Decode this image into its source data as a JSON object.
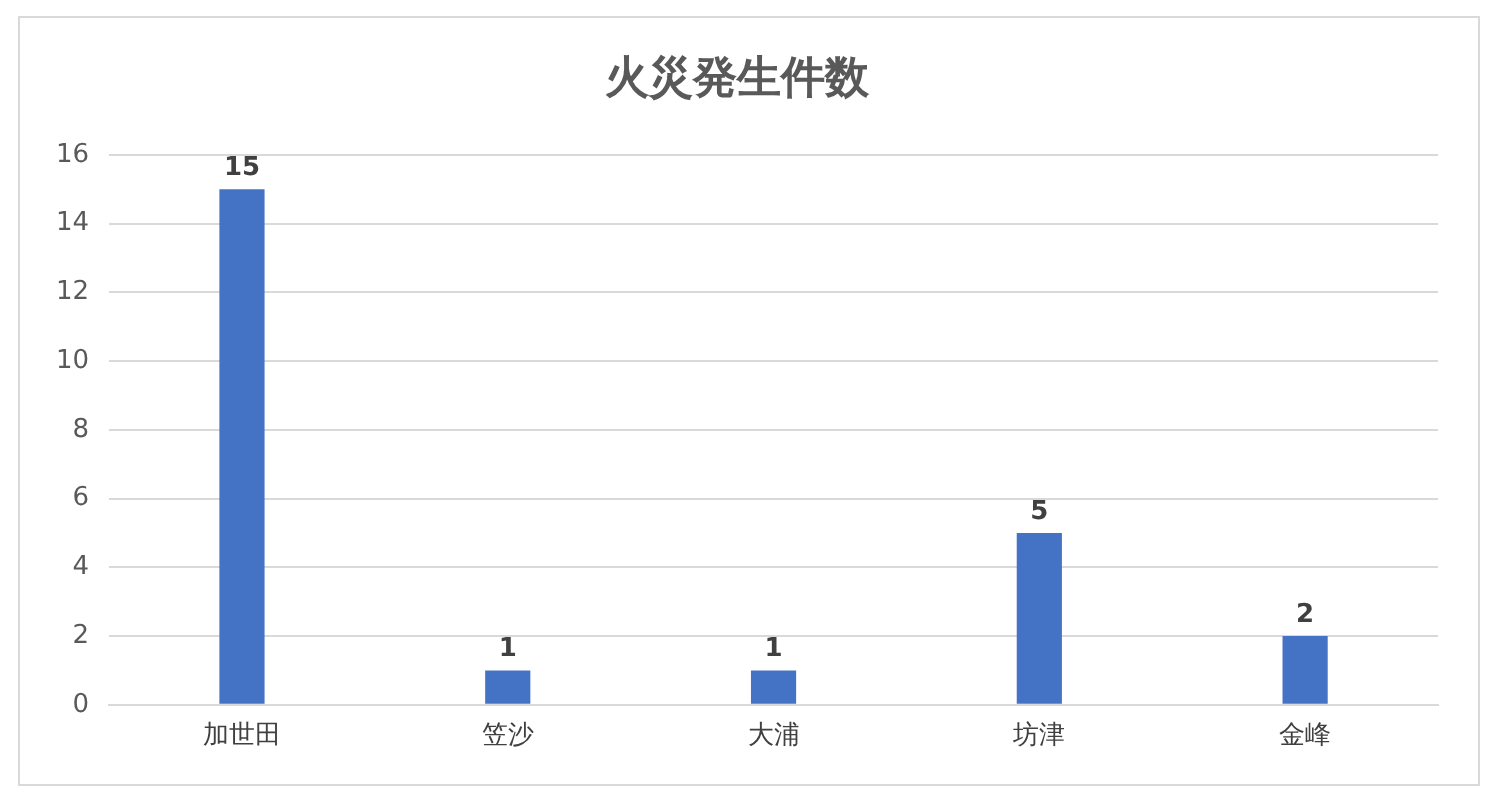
{
  "chart_data": {
    "type": "bar",
    "title": "火災発生件数",
    "categories": [
      "加世田",
      "笠沙",
      "大浦",
      "坊津",
      "金峰"
    ],
    "values": [
      15,
      1,
      1,
      5,
      2
    ],
    "color": "#4472c4",
    "ylim": [
      0,
      16
    ],
    "yticks": [
      0,
      2,
      4,
      6,
      8,
      10,
      12,
      14,
      16
    ],
    "grid": "y",
    "data_labels": true,
    "legend": false
  }
}
